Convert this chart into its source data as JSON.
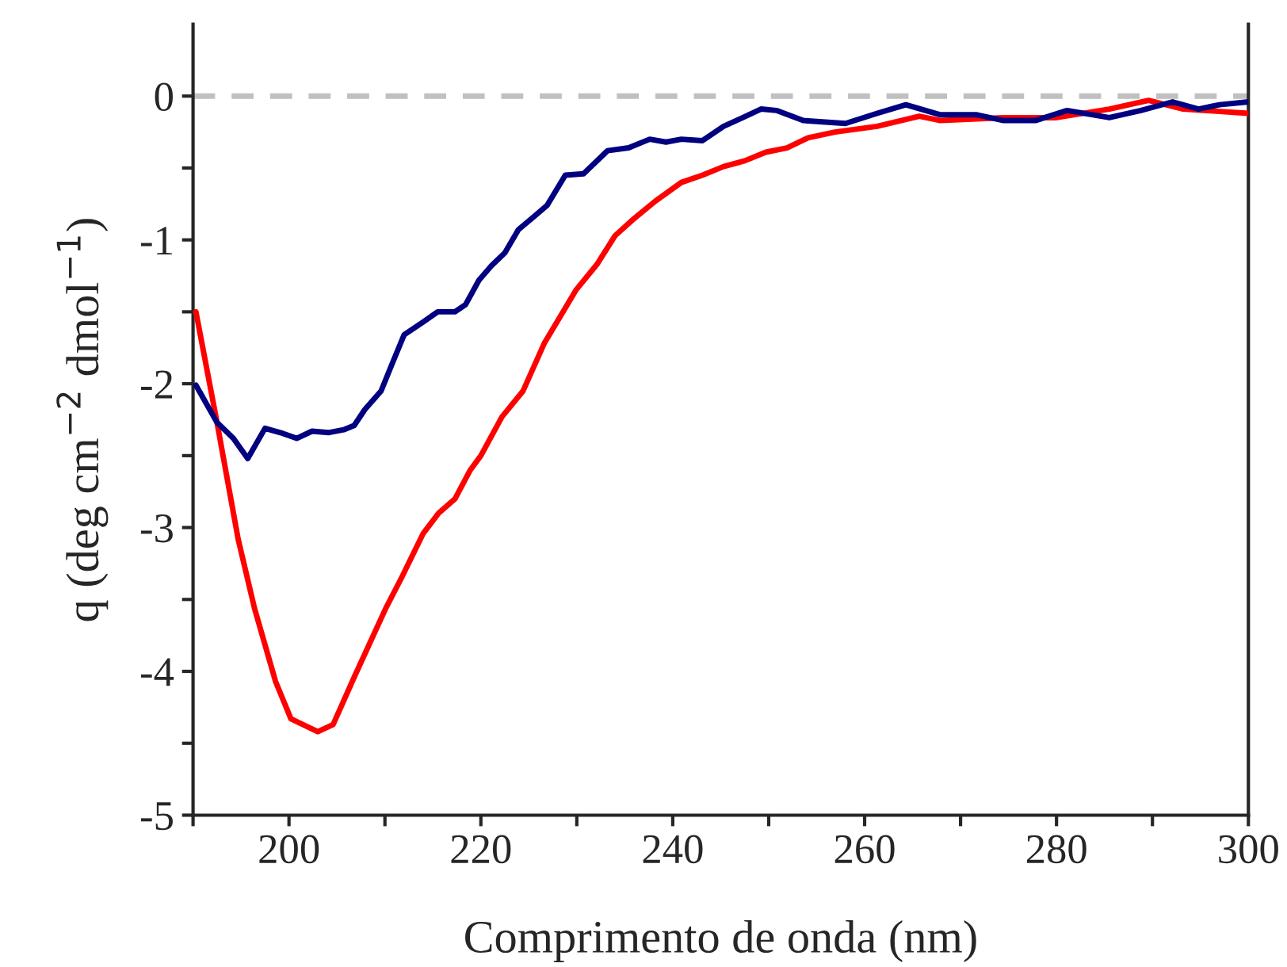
{
  "chart_data": {
    "type": "line",
    "xlabel": "Comprimento de onda (nm)",
    "ylabel": "q (deg cm$^{−2}$ dmol$^{−1}$)",
    "xlim": [
      190,
      300
    ],
    "ylim": [
      -5,
      0.5
    ],
    "xticks": [
      {
        "value": 190,
        "label": null
      },
      200,
      {
        "value": 210,
        "label": null
      },
      220,
      {
        "value": 230,
        "label": null
      },
      240,
      {
        "value": 250,
        "label": null
      },
      260,
      {
        "value": 270,
        "label": null
      },
      280,
      {
        "value": 290,
        "label": null
      },
      300
    ],
    "yticks": [
      -5,
      {
        "value": -4.5,
        "label": null
      },
      -4,
      {
        "value": -3.5,
        "label": null
      },
      -3,
      {
        "value": -2.5,
        "label": null
      },
      -2,
      {
        "value": -1.5,
        "label": null
      },
      -1,
      {
        "value": -0.5,
        "label": null
      },
      0
    ],
    "grid": false,
    "legend": false,
    "line_style": "solid",
    "marker": "none",
    "ref_lines": [
      {
        "axis": "y",
        "value": 0,
        "color": "#c0c0c0",
        "line_style": "dashed"
      }
    ],
    "series": [
      {
        "color": "#ff0000",
        "x": [
          190.3,
          192.5,
          194.7,
          196.4,
          198.6,
          200.2,
          203.0,
          204.6,
          206.8,
          210.1,
          211.8,
          214.0,
          215.6,
          217.3,
          218.9,
          220.0,
          222.2,
          224.4,
          226.6,
          228.3,
          229.9,
          232.1,
          234.0,
          236.0,
          238.2,
          240.9,
          243.1,
          245.3,
          247.5,
          249.7,
          251.9,
          254.1,
          256.9,
          261.3,
          265.7,
          267.9,
          274.5,
          280.0,
          285.5,
          289.6,
          293.2,
          300
        ],
        "values": [
          -1.5,
          -2.27,
          -3.08,
          -3.56,
          -4.07,
          -4.33,
          -4.42,
          -4.37,
          -4.04,
          -3.56,
          -3.34,
          -3.04,
          -2.9,
          -2.8,
          -2.6,
          -2.5,
          -2.23,
          -2.05,
          -1.72,
          -1.53,
          -1.35,
          -1.17,
          -0.97,
          -0.85,
          -0.73,
          -0.6,
          -0.55,
          -0.49,
          -0.45,
          -0.39,
          -0.36,
          -0.29,
          -0.25,
          -0.21,
          -0.14,
          -0.17,
          -0.15,
          -0.15,
          -0.09,
          -0.03,
          -0.09,
          -0.12
        ]
      },
      {
        "color": "#000080",
        "x": [
          190.3,
          192.5,
          194.2,
          195.7,
          197.5,
          199.1,
          200.8,
          202.4,
          204.1,
          205.7,
          206.8,
          207.9,
          209.6,
          210.7,
          212.0,
          214.0,
          215.5,
          217.3,
          218.4,
          219.8,
          221.1,
          222.5,
          223.9,
          225.5,
          226.9,
          228.8,
          230.7,
          233.2,
          235.4,
          237.6,
          239.3,
          240.9,
          243.1,
          245.3,
          247.3,
          249.2,
          250.8,
          253.6,
          258.0,
          261.3,
          264.3,
          267.9,
          271.7,
          274.5,
          277.8,
          281.1,
          285.5,
          288.8,
          292.1,
          294.8,
          297.0,
          300
        ],
        "values": [
          -2.01,
          -2.27,
          -2.38,
          -2.52,
          -2.31,
          -2.34,
          -2.38,
          -2.33,
          -2.34,
          -2.32,
          -2.29,
          -2.18,
          -2.05,
          -1.87,
          -1.66,
          -1.57,
          -1.5,
          -1.5,
          -1.45,
          -1.28,
          -1.18,
          -1.09,
          -0.93,
          -0.84,
          -0.76,
          -0.55,
          -0.54,
          -0.38,
          -0.36,
          -0.3,
          -0.32,
          -0.3,
          -0.31,
          -0.21,
          -0.15,
          -0.09,
          -0.1,
          -0.17,
          -0.19,
          -0.12,
          -0.06,
          -0.13,
          -0.13,
          -0.17,
          -0.17,
          -0.1,
          -0.15,
          -0.1,
          -0.04,
          -0.09,
          -0.06,
          -0.04
        ]
      }
    ]
  }
}
